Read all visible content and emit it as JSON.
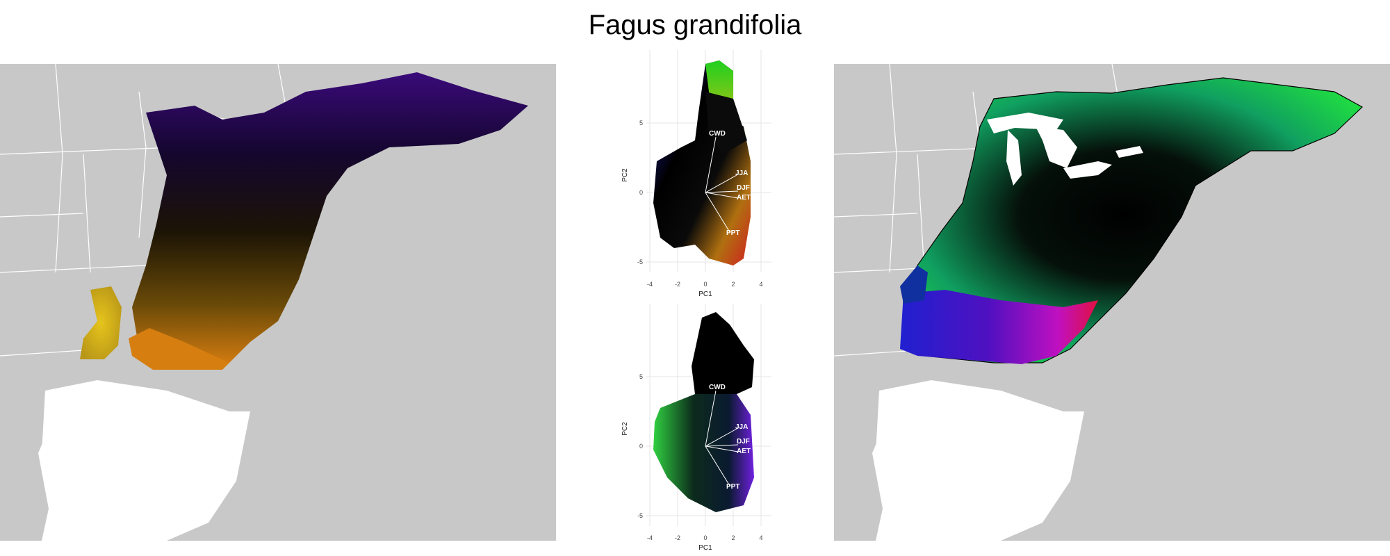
{
  "figure": {
    "title": "Fagus grandifolia"
  },
  "colors": {
    "land": "#c8c8c8",
    "state_lines": "#ffffff",
    "water": "#ffffff",
    "outline": "#000000"
  },
  "pca_top": {
    "xlabel": "PC1",
    "ylabel": "PC2",
    "x_ticks": [
      "-4",
      "-2",
      "0",
      "2",
      "4"
    ],
    "y_ticks": [
      "5",
      "0",
      "-5"
    ],
    "vectors": [
      "CWD",
      "JJA",
      "DJF",
      "AET",
      "PPT"
    ]
  },
  "pca_bottom": {
    "xlabel": "PC1",
    "ylabel": "PC2",
    "x_ticks": [
      "-4",
      "-2",
      "0",
      "2",
      "4"
    ],
    "y_ticks": [
      "5",
      "0",
      "-5"
    ],
    "vectors": [
      "CWD",
      "JJA",
      "DJF",
      "AET",
      "PPT"
    ]
  }
}
